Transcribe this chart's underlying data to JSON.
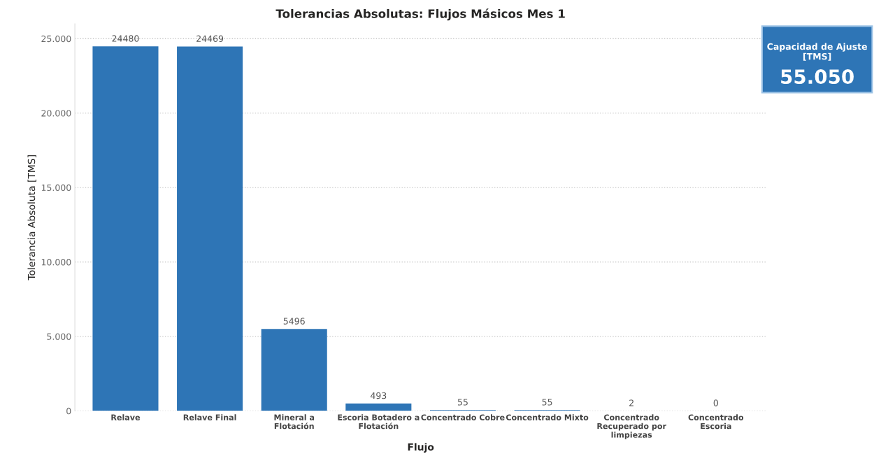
{
  "chart_data": {
    "type": "bar",
    "title": "Tolerancias Absolutas: Flujos Másicos Mes 1",
    "xlabel": "Flujo",
    "ylabel": "Tolerancia Absoluta [TMS]",
    "categories": [
      "Relave",
      "Relave Final",
      "Mineral a Flotación",
      "Escoria Botadero a Flotación",
      "Concentrado Cobre",
      "Concentrado Mixto",
      "Concentrado Recuperado por limpiezas",
      "Concentrado Escoria"
    ],
    "values": [
      24480,
      24469,
      5496,
      493,
      55,
      55,
      2,
      0
    ],
    "color": "#2e75b6",
    "ylim": [
      0,
      26000
    ],
    "yticks": [
      0,
      {
        "value": 5000,
        "label": "5.000"
      },
      {
        "value": 10000,
        "label": "10.000"
      },
      {
        "value": 15000,
        "label": "15.000"
      },
      {
        "value": 20000,
        "label": "20.000"
      },
      {
        "value": 25000,
        "label": "25.000"
      }
    ],
    "grid": "y",
    "data_labels": true,
    "annotations": [
      "Capacidad de Ajuste [TMS]",
      "55.050"
    ]
  }
}
